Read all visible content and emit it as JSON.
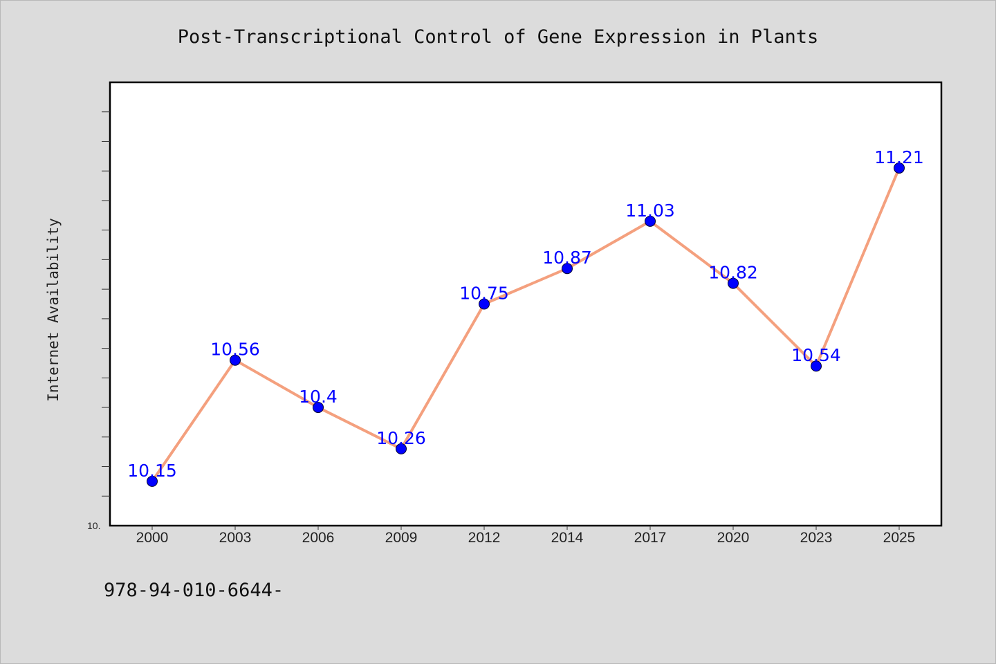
{
  "chart_data": {
    "type": "line",
    "title": "Post-Transcriptional Control of Gene Expression in Plants",
    "xlabel": "",
    "ylabel": "Internet Availability",
    "categories": [
      "2000",
      "2003",
      "2006",
      "2009",
      "2012",
      "2014",
      "2017",
      "2020",
      "2023",
      "2025"
    ],
    "series": [
      {
        "values": [
          10.15,
          10.56,
          10.4,
          10.26,
          10.75,
          10.87,
          11.03,
          10.82,
          10.54,
          11.21
        ],
        "labels": [
          "10.15",
          "10.56",
          "10.4",
          "10.26",
          "10.75",
          "10.87",
          "11.03",
          "10.82",
          "10.54",
          "11.21"
        ]
      }
    ],
    "ylim": [
      10.0,
      11.5
    ],
    "y_tick_label": "10.",
    "grid": false,
    "line_color": "#f4a07e",
    "marker_color": "#0000ff",
    "label_color": "#0000ff",
    "plot_background": "#ffffff",
    "page_background": "#dcdcdc"
  },
  "footer": {
    "text": "978-94-010-6644-"
  }
}
